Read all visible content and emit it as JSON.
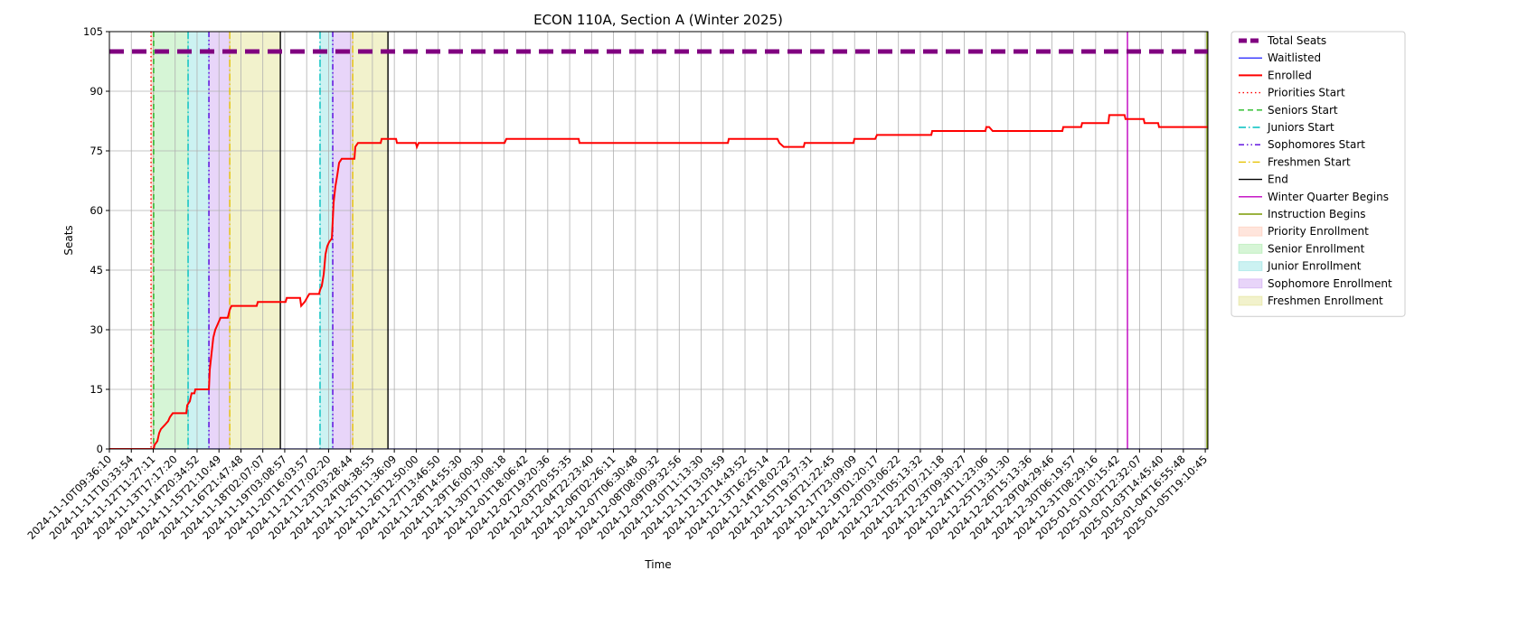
{
  "chart_data": {
    "type": "line",
    "title": "ECON 110A, Section A (Winter 2025)",
    "xlabel": "Time",
    "ylabel": "Seats",
    "xlim": [
      0,
      5012
    ],
    "ylim": [
      0,
      105
    ],
    "yticks": [
      0,
      15,
      30,
      45,
      60,
      75,
      90,
      105
    ],
    "xticks": [
      {
        "value": 0,
        "label": "2024-11-10T09:36:10"
      },
      {
        "value": 100,
        "label": "2024-11-11T10:33:54"
      },
      {
        "value": 200,
        "label": "2024-11-12T11:27:11"
      },
      {
        "value": 300,
        "label": "2024-11-13T17:17:20"
      },
      {
        "value": 400,
        "label": "2024-11-14T20:34:52"
      },
      {
        "value": 500,
        "label": "2024-11-15T21:10:49"
      },
      {
        "value": 600,
        "label": "2024-11-16T21:47:48"
      },
      {
        "value": 700,
        "label": "2024-11-18T02:07:07"
      },
      {
        "value": 800,
        "label": "2024-11-19T03:08:57"
      },
      {
        "value": 900,
        "label": "2024-11-20T16:03:57"
      },
      {
        "value": 1000,
        "label": "2024-11-21T17:02:20"
      },
      {
        "value": 1100,
        "label": "2024-11-23T03:28:44"
      },
      {
        "value": 1200,
        "label": "2024-11-24T04:38:55"
      },
      {
        "value": 1300,
        "label": "2024-11-25T11:36:09"
      },
      {
        "value": 1400,
        "label": "2024-11-26T12:50:00"
      },
      {
        "value": 1500,
        "label": "2024-11-27T13:46:50"
      },
      {
        "value": 1600,
        "label": "2024-11-28T14:55:30"
      },
      {
        "value": 1700,
        "label": "2024-11-29T16:00:30"
      },
      {
        "value": 1800,
        "label": "2024-11-30T17:08:18"
      },
      {
        "value": 1900,
        "label": "2024-12-01T18:06:42"
      },
      {
        "value": 2000,
        "label": "2024-12-02T19:20:36"
      },
      {
        "value": 2100,
        "label": "2024-12-03T20:55:35"
      },
      {
        "value": 2200,
        "label": "2024-12-04T22:23:40"
      },
      {
        "value": 2300,
        "label": "2024-12-06T02:26:11"
      },
      {
        "value": 2400,
        "label": "2024-12-07T06:30:48"
      },
      {
        "value": 2500,
        "label": "2024-12-08T08:00:32"
      },
      {
        "value": 2600,
        "label": "2024-12-09T09:32:56"
      },
      {
        "value": 2700,
        "label": "2024-12-10T11:13:30"
      },
      {
        "value": 2800,
        "label": "2024-12-11T13:03:59"
      },
      {
        "value": 2900,
        "label": "2024-12-12T14:43:52"
      },
      {
        "value": 3000,
        "label": "2024-12-13T16:25:14"
      },
      {
        "value": 3100,
        "label": "2024-12-14T18:02:22"
      },
      {
        "value": 3200,
        "label": "2024-12-15T19:37:31"
      },
      {
        "value": 3300,
        "label": "2024-12-16T21:22:45"
      },
      {
        "value": 3400,
        "label": "2024-12-17T23:09:09"
      },
      {
        "value": 3500,
        "label": "2024-12-19T01:20:17"
      },
      {
        "value": 3600,
        "label": "2024-12-20T03:06:22"
      },
      {
        "value": 3700,
        "label": "2024-12-21T05:13:32"
      },
      {
        "value": 3800,
        "label": "2024-12-22T07:21:18"
      },
      {
        "value": 3900,
        "label": "2024-12-23T09:30:27"
      },
      {
        "value": 4000,
        "label": "2024-12-24T11:23:06"
      },
      {
        "value": 4100,
        "label": "2024-12-25T13:31:30"
      },
      {
        "value": 4200,
        "label": "2024-12-26T15:13:36"
      },
      {
        "value": 4300,
        "label": "2024-12-29T04:29:46"
      },
      {
        "value": 4400,
        "label": "2024-12-30T06:19:57"
      },
      {
        "value": 4500,
        "label": "2024-12-31T08:29:16"
      },
      {
        "value": 4600,
        "label": "2025-01-01T10:15:42"
      },
      {
        "value": 4700,
        "label": "2025-01-02T12:32:07"
      },
      {
        "value": 4800,
        "label": "2025-01-03T14:45:40"
      },
      {
        "value": 4900,
        "label": "2025-01-04T16:55:48"
      },
      {
        "value": 5000,
        "label": "2025-01-05T19:10:45"
      }
    ],
    "grid": true,
    "legend": "outside-right",
    "series": [
      {
        "name": "Total Seats",
        "color": "#800080",
        "linestyle": "dashed",
        "width": 5,
        "x": [
          0,
          5012
        ],
        "values": [
          100,
          100
        ]
      },
      {
        "name": "Waitlisted",
        "color": "#0000ff",
        "linestyle": "solid",
        "width": 1.2,
        "x": [
          0,
          5012
        ],
        "values": [
          0,
          0
        ]
      },
      {
        "name": "Enrolled",
        "color": "#ff0000",
        "linestyle": "solid",
        "width": 2,
        "x": [
          0,
          202,
          206,
          219,
          227,
          235,
          252,
          268,
          276,
          289,
          351,
          355,
          367,
          375,
          388,
          392,
          454,
          458,
          466,
          474,
          483,
          491,
          499,
          507,
          540,
          549,
          557,
          672,
          677,
          804,
          809,
          870,
          875,
          891,
          912,
          957,
          961,
          969,
          978,
          986,
          994,
          1002,
          1015,
          1023,
          1031,
          1040,
          1048,
          1060,
          1118,
          1122,
          1134,
          1238,
          1242,
          1308,
          1312,
          1398,
          1403,
          1411,
          1803,
          1811,
          2141,
          2145,
          2822,
          2826,
          3048,
          3057,
          3077,
          3168,
          3172,
          3395,
          3399,
          3494,
          3502,
          3750,
          3754,
          3997,
          4001,
          4014,
          4030,
          4348,
          4352,
          4434,
          4438,
          4558,
          4562,
          4632,
          4636,
          4719,
          4723,
          4785,
          4789,
          5012
        ],
        "values": [
          0,
          0,
          1,
          2,
          4,
          5,
          6,
          7,
          8,
          9,
          9,
          11,
          12,
          14,
          14,
          15,
          15,
          20,
          24,
          28,
          30,
          31,
          32,
          33,
          33,
          35,
          36,
          36,
          37,
          37,
          38,
          38,
          36,
          37,
          39,
          39,
          40,
          41,
          44,
          49,
          51,
          52,
          53,
          62,
          66,
          69,
          72,
          73,
          73,
          76,
          77,
          77,
          78,
          78,
          77,
          77,
          76,
          77,
          77,
          78,
          78,
          77,
          77,
          78,
          78,
          77,
          76,
          76,
          77,
          77,
          78,
          78,
          79,
          79,
          80,
          80,
          81,
          81,
          80,
          80,
          81,
          81,
          82,
          82,
          84,
          84,
          83,
          83,
          82,
          82,
          81,
          81
        ]
      }
    ],
    "events": [
      {
        "name": "Priorities Start",
        "color": "#ff0000",
        "linestyle": "dotted",
        "x": [
          190
        ]
      },
      {
        "name": "Seniors Start",
        "color": "#22bb22",
        "linestyle": "dashed",
        "x": [
          202
        ]
      },
      {
        "name": "Juniors Start",
        "color": "#00bfbf",
        "linestyle": "dashdot",
        "x": [
          359,
          961
        ]
      },
      {
        "name": "Sophomores Start",
        "color": "#5500dd",
        "linestyle": "dashdotdot",
        "x": [
          454,
          1019
        ]
      },
      {
        "name": "Freshmen Start",
        "color": "#e6c200",
        "linestyle": "dashdot",
        "x": [
          549,
          1110
        ]
      },
      {
        "name": "End",
        "color": "#000000",
        "linestyle": "solid",
        "x": [
          780,
          1271
        ]
      },
      {
        "name": "Winter Quarter Begins",
        "color": "#c000c0",
        "linestyle": "solid",
        "x": [
          4645
        ]
      },
      {
        "name": "Instruction Begins",
        "color": "#7a9a01",
        "linestyle": "solid",
        "x": [
          5008
        ]
      }
    ],
    "spans": [
      {
        "name": "Priority Enrollment",
        "color": "#ff7f50",
        "ranges": [
          [
            190,
            202
          ]
        ]
      },
      {
        "name": "Senior Enrollment",
        "color": "#32cd32",
        "ranges": [
          [
            202,
            359
          ]
        ]
      },
      {
        "name": "Junior Enrollment",
        "color": "#00bfbf",
        "ranges": [
          [
            359,
            454
          ],
          [
            961,
            1019
          ]
        ]
      },
      {
        "name": "Sophomore Enrollment",
        "color": "#8a2be2",
        "ranges": [
          [
            454,
            549
          ],
          [
            1019,
            1110
          ]
        ]
      },
      {
        "name": "Freshmen Enrollment",
        "color": "#bfbf00",
        "ranges": [
          [
            549,
            780
          ],
          [
            1110,
            1271
          ]
        ]
      }
    ],
    "span_alpha": 0.2
  }
}
